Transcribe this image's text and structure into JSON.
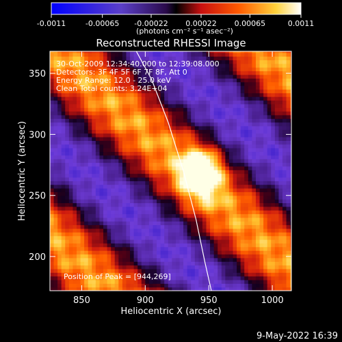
{
  "chart_data": {
    "type": "heatmap",
    "title": "Reconstructed RHESSI Image",
    "xlabel": "Heliocentric X (arcsec)",
    "ylabel": "Heliocentric Y (arcsec)",
    "xlim": [
      825,
      1015
    ],
    "ylim": [
      172,
      368
    ],
    "xticks": [
      850,
      900,
      950,
      1000
    ],
    "yticks": [
      200,
      250,
      300,
      350
    ],
    "colorbar": {
      "ticks": [
        "-0.0011",
        "-0.00065",
        "-0.00022",
        "0.00022",
        "0.00065",
        "0.0011"
      ],
      "tick_values": [
        -0.0011,
        -0.00065,
        -0.00022,
        0.00022,
        0.00065,
        0.0011
      ],
      "range": [
        -0.0011,
        0.0011
      ],
      "units_label": "(photons cm⁻² s⁻¹ asec⁻²)"
    },
    "annotations": [
      "30-Oct-2009 12:34:40.000 to 12:39:08.000",
      "Detectors: 3F 4F 5F 6F 7F 8F, Att 0",
      "Energy Range: 12.0 - 25.0 keV",
      "Clean    Total counts: 3.24E+04",
      "Position of Peak = [944,269]"
    ],
    "peak": {
      "x": 944,
      "y": 269
    },
    "limb": {
      "points": [
        [
          893,
          368
        ],
        [
          905,
          345
        ],
        [
          918,
          310
        ],
        [
          930,
          270
        ],
        [
          940,
          230
        ],
        [
          947,
          195
        ],
        [
          952,
          172
        ]
      ]
    },
    "footer": "9-May-2022 16:39"
  }
}
